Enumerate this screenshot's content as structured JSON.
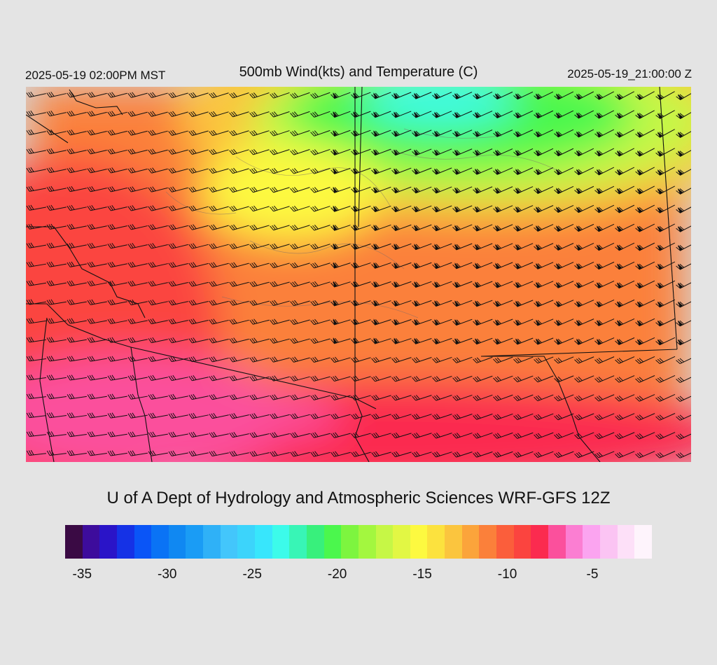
{
  "header": {
    "local_time": "2025-05-19 02:00PM MST",
    "title": "500mb Wind(kts) and Temperature (C)",
    "valid_time": "2025-05-19_21:00:00 Z"
  },
  "footer": {
    "credit": "U of A Dept of Hydrology and Atmospheric Sciences WRF-GFS 12Z"
  },
  "colorbar": {
    "colors": [
      "#3a0a44",
      "#3d0c9c",
      "#2a14c8",
      "#1532e6",
      "#0a55f7",
      "#0a73f5",
      "#1088f2",
      "#1a9cf5",
      "#2fb1f7",
      "#43c6fb",
      "#3cd4fb",
      "#38e6fc",
      "#3cfbea",
      "#38f5b6",
      "#38f07c",
      "#4bf74d",
      "#7df53f",
      "#a3f73f",
      "#c6f746",
      "#e2f744",
      "#fdf940",
      "#fce23e",
      "#fbc53e",
      "#fba43b",
      "#fb803a",
      "#fb5e3b",
      "#fb443f",
      "#fb2b4f",
      "#fb509c",
      "#fb7ed2",
      "#fba4f0",
      "#fbc4f3",
      "#fde0f8",
      "#fef4fc"
    ],
    "tick_labels": [
      "-35",
      "-30",
      "-25",
      "-20",
      "-15",
      "-10",
      "-5"
    ],
    "tick_values": [
      -35,
      -30,
      -25,
      -20,
      -15,
      -10,
      -5
    ],
    "min": -36,
    "max": -1.5
  },
  "map": {
    "field": "500mb temperature (C)",
    "temperature_range_c": [
      -21,
      -7
    ],
    "coldest_region": "north-central (Wyoming/Nebraska)",
    "warmest_region": "southwest (Southern California/Arizona)",
    "wind_barbs": "westerly to west-northwesterly"
  }
}
